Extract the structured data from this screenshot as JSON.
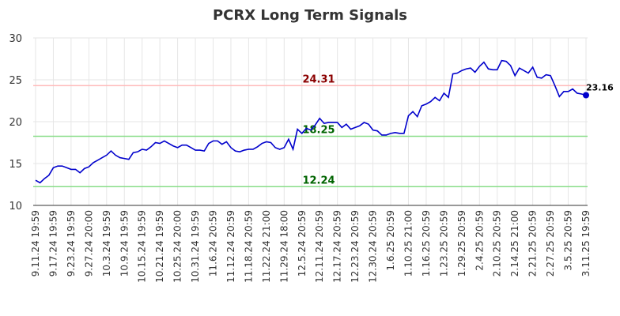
{
  "chart_data": {
    "type": "line",
    "title": "PCRX Long Term Signals",
    "categories": [
      "9.11.24 19:59",
      null,
      null,
      null,
      "9.17.24 19:59",
      null,
      null,
      null,
      "9.23.24 19:59",
      null,
      null,
      null,
      "9.27.24 20:00",
      null,
      null,
      null,
      "10.3.24 19:59",
      null,
      null,
      null,
      "10.9.24 19:59",
      null,
      null,
      null,
      "10.15.24 19:59",
      null,
      null,
      null,
      "10.21.24 19:59",
      null,
      null,
      null,
      "10.25.24 20:00",
      null,
      null,
      null,
      "10.31.24 19:59",
      null,
      null,
      null,
      "11.6.24 20:59",
      null,
      null,
      null,
      "11.12.24 20:59",
      null,
      null,
      null,
      "11.18.24 20:59",
      null,
      null,
      null,
      "11.22.24 21:00",
      null,
      null,
      null,
      "11.29.24 18:00",
      null,
      null,
      null,
      "12.5.24 20:59",
      null,
      null,
      null,
      "12.11.24 20:59",
      null,
      null,
      null,
      "12.17.24 20:59",
      null,
      null,
      null,
      "12.23.24 20:59",
      null,
      null,
      null,
      "12.30.24 20:59",
      null,
      null,
      null,
      "1.6.25 20:59",
      null,
      null,
      null,
      "1.10.25 21:00",
      null,
      null,
      null,
      "1.16.25 20:59",
      null,
      null,
      null,
      "1.23.25 20:59",
      null,
      null,
      null,
      "1.29.25 20:59",
      null,
      null,
      null,
      "2.4.25 20:59",
      null,
      null,
      null,
      "2.10.25 20:59",
      null,
      null,
      null,
      "2.14.25 21:00",
      null,
      null,
      null,
      "2.21.25 20:59",
      null,
      null,
      null,
      "2.27.25 20:59",
      null,
      null,
      null,
      "3.5.25 20:59",
      null,
      null,
      null,
      "3.11.25 19:59"
    ],
    "series": [
      {
        "color": "#0000cc",
        "values": [
          13.0,
          12.7,
          13.2,
          13.6,
          14.5,
          14.7,
          14.7,
          14.5,
          14.3,
          14.3,
          13.9,
          14.4,
          14.6,
          15.1,
          15.4,
          15.7,
          16.0,
          16.5,
          16.0,
          15.7,
          15.6,
          15.5,
          16.3,
          16.4,
          16.7,
          16.6,
          17.0,
          17.5,
          17.4,
          17.7,
          17.4,
          17.1,
          16.9,
          17.2,
          17.2,
          16.9,
          16.6,
          16.6,
          16.5,
          17.4,
          17.7,
          17.7,
          17.3,
          17.6,
          16.9,
          16.5,
          16.4,
          16.6,
          16.7,
          16.7,
          17.0,
          17.4,
          17.6,
          17.5,
          16.9,
          16.7,
          16.9,
          17.9,
          16.7,
          19.1,
          18.6,
          19.2,
          19.0,
          19.6,
          20.4,
          19.8,
          19.9,
          19.9,
          19.9,
          19.3,
          19.7,
          19.1,
          19.3,
          19.5,
          19.9,
          19.7,
          19.0,
          18.9,
          18.4,
          18.4,
          18.6,
          18.7,
          18.6,
          18.6,
          20.7,
          21.2,
          20.6,
          21.9,
          22.1,
          22.4,
          22.9,
          22.5,
          23.4,
          22.9,
          25.7,
          25.8,
          26.1,
          26.3,
          26.4,
          25.9,
          26.6,
          27.1,
          26.3,
          26.2,
          26.2,
          27.3,
          27.2,
          26.7,
          25.5,
          26.4,
          26.1,
          25.8,
          26.5,
          25.3,
          25.2,
          25.6,
          25.5,
          24.3,
          23.0,
          23.6,
          23.6,
          23.9,
          23.4,
          23.3,
          23.16
        ]
      }
    ],
    "ylim": [
      10,
      30
    ],
    "yticks": [
      10,
      15,
      20,
      25,
      30
    ],
    "grid": true,
    "hlines": [
      {
        "value": 24.31,
        "color": "#ffbbbb",
        "label_color": "#8b0000"
      },
      {
        "value": 18.25,
        "color": "#88dd88",
        "label_color": "#006400"
      },
      {
        "value": 12.24,
        "color": "#88dd88",
        "label_color": "#006400"
      }
    ]
  }
}
